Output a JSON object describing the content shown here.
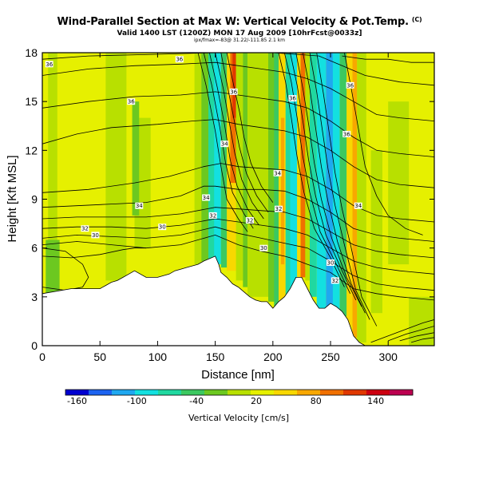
{
  "chart_data": {
    "type": "heatmap",
    "title": "Wind-Parallel Section at Max W: Vertical Velocity & Pot.Temp.",
    "title_mark": "(C)",
    "subtitle": "Valid 1400 LST (1200Z) MON 17 Aug 2009 [10hrFcst@0033z]",
    "subtitle2": "ipx/fmax=-83@ 31.22/-111.85 2.1 km",
    "xlabel": "Distance [nm]",
    "ylabel": "Height [Kft MSL]",
    "xlim": [
      0,
      340
    ],
    "ylim": [
      0,
      18
    ],
    "xticks": [
      0,
      50,
      100,
      150,
      200,
      250,
      300
    ],
    "yticks": [
      0,
      3,
      6,
      9,
      12,
      15,
      18
    ],
    "colorbar": {
      "title": "Vertical Velocity [cm/s]",
      "tick_labels": [
        "-160",
        "-100",
        "-40",
        "20",
        "80",
        "140"
      ],
      "colors": [
        "#0000d0",
        "#1c63f0",
        "#1fa8f0",
        "#13e0e0",
        "#20d8a0",
        "#3cc860",
        "#6cc820",
        "#b8e000",
        "#e6f000",
        "#f8d800",
        "#f8a800",
        "#f07000",
        "#e03800",
        "#cc0010",
        "#bc0050"
      ]
    },
    "terrain": {
      "x": [
        0,
        0,
        25,
        50,
        55,
        60,
        65,
        70,
        75,
        80,
        90,
        100,
        110,
        115,
        120,
        125,
        130,
        135,
        140,
        150,
        153,
        155,
        160,
        165,
        170,
        175,
        180,
        185,
        190,
        195,
        200,
        205,
        210,
        215,
        220,
        225,
        230,
        235,
        240,
        245,
        250,
        255,
        260,
        265,
        270,
        275,
        280,
        340,
        340
      ],
      "y": [
        0,
        3.2,
        3.5,
        3.5,
        3.7,
        3.9,
        4.0,
        4.2,
        4.4,
        4.6,
        4.2,
        4.2,
        4.4,
        4.6,
        4.7,
        4.8,
        4.9,
        5.0,
        5.2,
        5.5,
        5.0,
        4.5,
        4.2,
        3.8,
        3.6,
        3.3,
        3.0,
        2.8,
        2.7,
        2.7,
        2.3,
        2.7,
        3.0,
        3.5,
        4.2,
        4.2,
        3.5,
        2.8,
        2.3,
        2.3,
        2.6,
        2.4,
        2.1,
        1.6,
        0.6,
        0.2,
        0.0,
        0.0,
        0
      ]
    },
    "color_bands": [
      {
        "x": 3,
        "w": 12,
        "y0": 3.2,
        "y1": 6.5,
        "color": "#6cc820"
      },
      {
        "x": 5,
        "w": 8,
        "y0": 6.5,
        "y1": 18,
        "color": "#b8e000"
      },
      {
        "x": 55,
        "w": 18,
        "y0": 4.0,
        "y1": 18,
        "color": "#b8e000"
      },
      {
        "x": 80,
        "w": 14,
        "y0": 6.0,
        "y1": 14,
        "color": "#b8e000"
      },
      {
        "x": 78,
        "w": 6,
        "y0": 8.0,
        "y1": 15,
        "color": "#6cc820"
      },
      {
        "x": 132,
        "w": 8,
        "y0": 5.0,
        "y1": 18,
        "color": "#b8e000"
      },
      {
        "x": 138,
        "w": 8,
        "y0": 5.2,
        "y1": 18,
        "color": "#6cc820"
      },
      {
        "x": 144,
        "w": 7,
        "y0": 5.3,
        "y1": 18,
        "color": "#20d8a0"
      },
      {
        "x": 149,
        "w": 6,
        "y0": 5.0,
        "y1": 18,
        "color": "#13e0e0"
      },
      {
        "x": 155,
        "w": 6,
        "y0": 4.8,
        "y1": 18,
        "color": "#3cc860"
      },
      {
        "x": 160,
        "w": 8,
        "y0": 4.6,
        "y1": 18,
        "color": "#f8d800"
      },
      {
        "x": 163,
        "w": 6,
        "y0": 10,
        "y1": 18,
        "color": "#f07000"
      },
      {
        "x": 165,
        "w": 3,
        "y0": 14,
        "y1": 18,
        "color": "#e03800"
      },
      {
        "x": 168,
        "w": 6,
        "y0": 4.0,
        "y1": 18,
        "color": "#b8e000"
      },
      {
        "x": 174,
        "w": 4,
        "y0": 3.6,
        "y1": 18,
        "color": "#6cc820"
      },
      {
        "x": 178,
        "w": 20,
        "y0": 3.0,
        "y1": 18,
        "color": "#b8e000"
      },
      {
        "x": 196,
        "w": 6,
        "y0": 2.7,
        "y1": 18,
        "color": "#6cc820"
      },
      {
        "x": 201,
        "w": 5,
        "y0": 2.3,
        "y1": 18,
        "color": "#3cc860"
      },
      {
        "x": 205,
        "w": 6,
        "y0": 2.7,
        "y1": 18,
        "color": "#f8d800"
      },
      {
        "x": 207,
        "w": 3,
        "y0": 5.0,
        "y1": 14,
        "color": "#f8a800"
      },
      {
        "x": 211,
        "w": 4,
        "y0": 3.0,
        "y1": 18,
        "color": "#20d8a0"
      },
      {
        "x": 215,
        "w": 6,
        "y0": 3.5,
        "y1": 18,
        "color": "#13e0e0"
      },
      {
        "x": 221,
        "w": 4,
        "y0": 4.2,
        "y1": 18,
        "color": "#f8d800"
      },
      {
        "x": 224,
        "w": 5,
        "y0": 4.2,
        "y1": 18,
        "color": "#f07000"
      },
      {
        "x": 228,
        "w": 4,
        "y0": 4.0,
        "y1": 18,
        "color": "#b8e000"
      },
      {
        "x": 232,
        "w": 6,
        "y0": 3.0,
        "y1": 18,
        "color": "#20d8a0"
      },
      {
        "x": 238,
        "w": 8,
        "y0": 2.3,
        "y1": 18,
        "color": "#13e0e0"
      },
      {
        "x": 246,
        "w": 6,
        "y0": 2.3,
        "y1": 18,
        "color": "#1fa8f0"
      },
      {
        "x": 252,
        "w": 6,
        "y0": 2.2,
        "y1": 18,
        "color": "#13e0e0"
      },
      {
        "x": 258,
        "w": 6,
        "y0": 1.8,
        "y1": 18,
        "color": "#3cc860"
      },
      {
        "x": 264,
        "w": 5,
        "y0": 1.2,
        "y1": 18,
        "color": "#f8d800"
      },
      {
        "x": 269,
        "w": 4,
        "y0": 0.5,
        "y1": 18,
        "color": "#f8a800"
      },
      {
        "x": 273,
        "w": 8,
        "y0": 0.2,
        "y1": 18,
        "color": "#b8e000"
      },
      {
        "x": 285,
        "w": 10,
        "y0": 2.0,
        "y1": 12,
        "color": "#b8e000"
      },
      {
        "x": 300,
        "w": 18,
        "y0": 5.0,
        "y1": 15,
        "color": "#b8e000"
      },
      {
        "x": 318,
        "w": 22,
        "y0": 0.0,
        "y1": 3.0,
        "color": "#b8e000"
      }
    ],
    "pot_temp_contours": [
      {
        "x": [
          0,
          30,
          60,
          90,
          120,
          150,
          170,
          190,
          210,
          215,
          230,
          250,
          270,
          290,
          310,
          340
        ],
        "y": [
          6.2,
          6.4,
          6.2,
          6.0,
          6.2,
          6.8,
          6.2,
          5.8,
          5.5,
          5.4,
          5.0,
          4.5,
          3.5,
          3.2,
          3.0,
          2.8
        ]
      },
      {
        "x": [
          0,
          30,
          60,
          90,
          120,
          150,
          170,
          190,
          210,
          230,
          250,
          270,
          290,
          310,
          340
        ],
        "y": [
          6.6,
          6.8,
          6.7,
          6.6,
          6.8,
          7.3,
          6.9,
          6.6,
          6.3,
          6.0,
          5.2,
          4.3,
          3.8,
          3.6,
          3.4
        ]
      },
      {
        "x": [
          0,
          30,
          60,
          90,
          120,
          150,
          170,
          190,
          210,
          230,
          250,
          270,
          290,
          310,
          340
        ],
        "y": [
          7.2,
          7.3,
          7.3,
          7.2,
          7.4,
          7.8,
          7.6,
          7.4,
          7.2,
          6.8,
          6.0,
          5.2,
          4.8,
          4.6,
          4.4
        ]
      },
      {
        "x": [
          0,
          30,
          60,
          90,
          120,
          150,
          170,
          190,
          210,
          230,
          250,
          270,
          290,
          310,
          340
        ],
        "y": [
          7.8,
          7.9,
          7.9,
          7.9,
          8.1,
          8.5,
          8.4,
          8.3,
          8.2,
          7.8,
          7.0,
          6.2,
          5.8,
          5.6,
          5.4
        ]
      },
      {
        "x": [
          0,
          30,
          60,
          90,
          120,
          140,
          150,
          170,
          190,
          210,
          230,
          250,
          270,
          290,
          310,
          340
        ],
        "y": [
          8.5,
          8.6,
          8.7,
          8.8,
          9.2,
          9.8,
          9.8,
          9.6,
          9.6,
          9.5,
          9.0,
          8.2,
          7.2,
          6.8,
          6.6,
          6.4
        ]
      },
      {
        "x": [
          0,
          40,
          80,
          110,
          140,
          155,
          170,
          190,
          210,
          230,
          250,
          270,
          290,
          310,
          340
        ],
        "y": [
          9.4,
          9.6,
          10.0,
          10.4,
          11.0,
          11.2,
          11.0,
          10.9,
          10.8,
          10.4,
          9.6,
          8.6,
          8.0,
          7.8,
          7.6
        ]
      },
      {
        "x": [
          0,
          30,
          60,
          100,
          130,
          150,
          170,
          190,
          210,
          230,
          250,
          270,
          290,
          310,
          340
        ],
        "y": [
          12.4,
          13.0,
          13.4,
          13.6,
          13.8,
          13.9,
          13.6,
          13.4,
          13.2,
          12.8,
          12.0,
          11.0,
          10.2,
          9.9,
          9.7
        ]
      },
      {
        "x": [
          0,
          40,
          80,
          120,
          150,
          170,
          190,
          210,
          230,
          250,
          270,
          290,
          310,
          340
        ],
        "y": [
          14.6,
          15.0,
          15.3,
          15.4,
          15.6,
          15.4,
          15.2,
          15.0,
          14.6,
          13.8,
          12.8,
          12.0,
          11.8,
          11.6
        ]
      },
      {
        "x": [
          0,
          40,
          80,
          120,
          150,
          170,
          190,
          210,
          230,
          250,
          270,
          290,
          310,
          340
        ],
        "y": [
          16.6,
          17.0,
          17.2,
          17.3,
          17.4,
          17.2,
          17.0,
          16.8,
          16.4,
          15.8,
          15.0,
          14.2,
          14.0,
          13.8
        ]
      },
      {
        "x": [
          0,
          40,
          100,
          150,
          200,
          240,
          260,
          280,
          310,
          340
        ],
        "y": [
          17.6,
          17.8,
          17.9,
          18.0,
          18.0,
          17.8,
          17.2,
          16.6,
          16.2,
          16.0
        ]
      },
      {
        "x": [
          260,
          280,
          300,
          320,
          340
        ],
        "y": [
          17.8,
          17.6,
          17.6,
          17.4,
          17.4
        ]
      },
      {
        "x": [
          0,
          20,
          35,
          40,
          35,
          20,
          0
        ],
        "y": [
          6.0,
          5.8,
          5.0,
          4.2,
          3.6,
          3.4,
          3.6
        ]
      },
      {
        "x": [
          0,
          25,
          50,
          70,
          80,
          90
        ],
        "y": [
          5.5,
          5.4,
          5.6,
          5.9,
          6.0,
          6.0
        ]
      },
      {
        "x": [
          285,
          300,
          315,
          330,
          340
        ],
        "y": [
          0.2,
          0.6,
          1.0,
          1.4,
          1.6
        ]
      },
      {
        "x": [
          300,
          315,
          330,
          340
        ],
        "y": [
          0.3,
          0.7,
          1.0,
          1.2
        ]
      },
      {
        "x": [
          310,
          325,
          340
        ],
        "y": [
          0.3,
          0.6,
          0.8
        ]
      },
      {
        "x": [
          320,
          330,
          340
        ],
        "y": [
          0.2,
          0.4,
          0.5
        ]
      }
    ],
    "vertical_contours": [
      {
        "x": [
          135,
          142,
          150,
          155,
          160,
          170,
          178
        ],
        "y": [
          18,
          16.0,
          13.2,
          11.0,
          9.0,
          7.8,
          7.0
        ]
      },
      {
        "x": [
          140,
          147,
          154,
          159,
          165,
          175,
          183
        ],
        "y": [
          18,
          16.0,
          13.4,
          11.2,
          9.4,
          8.1,
          7.2
        ]
      },
      {
        "x": [
          145,
          152,
          158,
          163,
          169,
          178,
          188
        ],
        "y": [
          18,
          15.8,
          13.6,
          11.4,
          9.8,
          8.4,
          7.4
        ]
      },
      {
        "x": [
          150,
          157,
          162,
          167,
          173,
          182,
          192
        ],
        "y": [
          18,
          15.8,
          13.8,
          11.8,
          10.2,
          8.8,
          7.8
        ]
      },
      {
        "x": [
          155,
          161,
          166,
          171,
          177,
          186,
          196
        ],
        "y": [
          18,
          15.8,
          14.0,
          12.2,
          10.6,
          9.2,
          8.2
        ]
      },
      {
        "x": [
          160,
          166,
          171,
          175,
          181,
          190,
          200
        ],
        "y": [
          18,
          16.0,
          14.4,
          12.8,
          11.2,
          9.8,
          8.8
        ]
      },
      {
        "x": [
          205,
          211,
          216,
          221,
          227,
          236,
          250,
          262
        ],
        "y": [
          18,
          16.2,
          14.0,
          11.6,
          9.4,
          7.2,
          5.4,
          3.6
        ]
      },
      {
        "x": [
          210,
          216,
          221,
          226,
          232,
          241,
          255,
          267
        ],
        "y": [
          18,
          16.2,
          14.0,
          11.6,
          9.4,
          7.0,
          5.0,
          3.2
        ]
      },
      {
        "x": [
          215,
          221,
          226,
          231,
          237,
          246,
          260,
          272
        ],
        "y": [
          18,
          16.0,
          13.8,
          11.4,
          9.2,
          6.8,
          4.6,
          2.8
        ]
      },
      {
        "x": [
          220,
          226,
          231,
          236,
          242,
          251,
          264,
          277
        ],
        "y": [
          18,
          15.8,
          13.6,
          11.2,
          9.0,
          6.6,
          4.2,
          2.4
        ]
      },
      {
        "x": [
          226,
          232,
          237,
          242,
          248,
          256,
          268,
          280
        ],
        "y": [
          18,
          15.8,
          13.4,
          11.0,
          8.8,
          6.4,
          3.8,
          2.0
        ]
      },
      {
        "x": [
          232,
          238,
          243,
          248,
          254,
          262,
          272,
          284
        ],
        "y": [
          18,
          15.6,
          13.2,
          10.8,
          8.6,
          6.2,
          3.4,
          1.6
        ]
      },
      {
        "x": [
          238,
          244,
          249,
          254,
          260,
          268,
          277,
          290
        ],
        "y": [
          18,
          15.4,
          13.0,
          10.6,
          8.4,
          6.0,
          3.0,
          1.2
        ]
      },
      {
        "x": [
          262,
          268,
          274,
          280,
          290,
          300,
          315,
          330
        ],
        "y": [
          18,
          15.8,
          13.4,
          11.0,
          9.2,
          8.0,
          7.2,
          6.8
        ]
      }
    ],
    "contour_labels": [
      {
        "x": 6,
        "y": 17.3,
        "text": "36"
      },
      {
        "x": 119,
        "y": 17.6,
        "text": "36"
      },
      {
        "x": 77,
        "y": 15.0,
        "text": "36"
      },
      {
        "x": 166,
        "y": 15.6,
        "text": "36"
      },
      {
        "x": 217,
        "y": 15.2,
        "text": "36"
      },
      {
        "x": 267,
        "y": 16.0,
        "text": "36"
      },
      {
        "x": 264,
        "y": 13.0,
        "text": "36"
      },
      {
        "x": 158,
        "y": 12.4,
        "text": "34"
      },
      {
        "x": 204,
        "y": 10.6,
        "text": "34"
      },
      {
        "x": 142,
        "y": 9.1,
        "text": "34"
      },
      {
        "x": 84,
        "y": 8.6,
        "text": "34"
      },
      {
        "x": 274,
        "y": 8.6,
        "text": "34"
      },
      {
        "x": 148,
        "y": 8.0,
        "text": "32"
      },
      {
        "x": 37,
        "y": 7.2,
        "text": "32"
      },
      {
        "x": 180,
        "y": 7.7,
        "text": "32"
      },
      {
        "x": 205,
        "y": 8.4,
        "text": "32"
      },
      {
        "x": 254,
        "y": 4.0,
        "text": "32"
      },
      {
        "x": 46,
        "y": 6.8,
        "text": "30"
      },
      {
        "x": 104,
        "y": 7.3,
        "text": "30"
      },
      {
        "x": 192,
        "y": 6.0,
        "text": "30"
      },
      {
        "x": 250,
        "y": 5.1,
        "text": "30"
      }
    ]
  }
}
